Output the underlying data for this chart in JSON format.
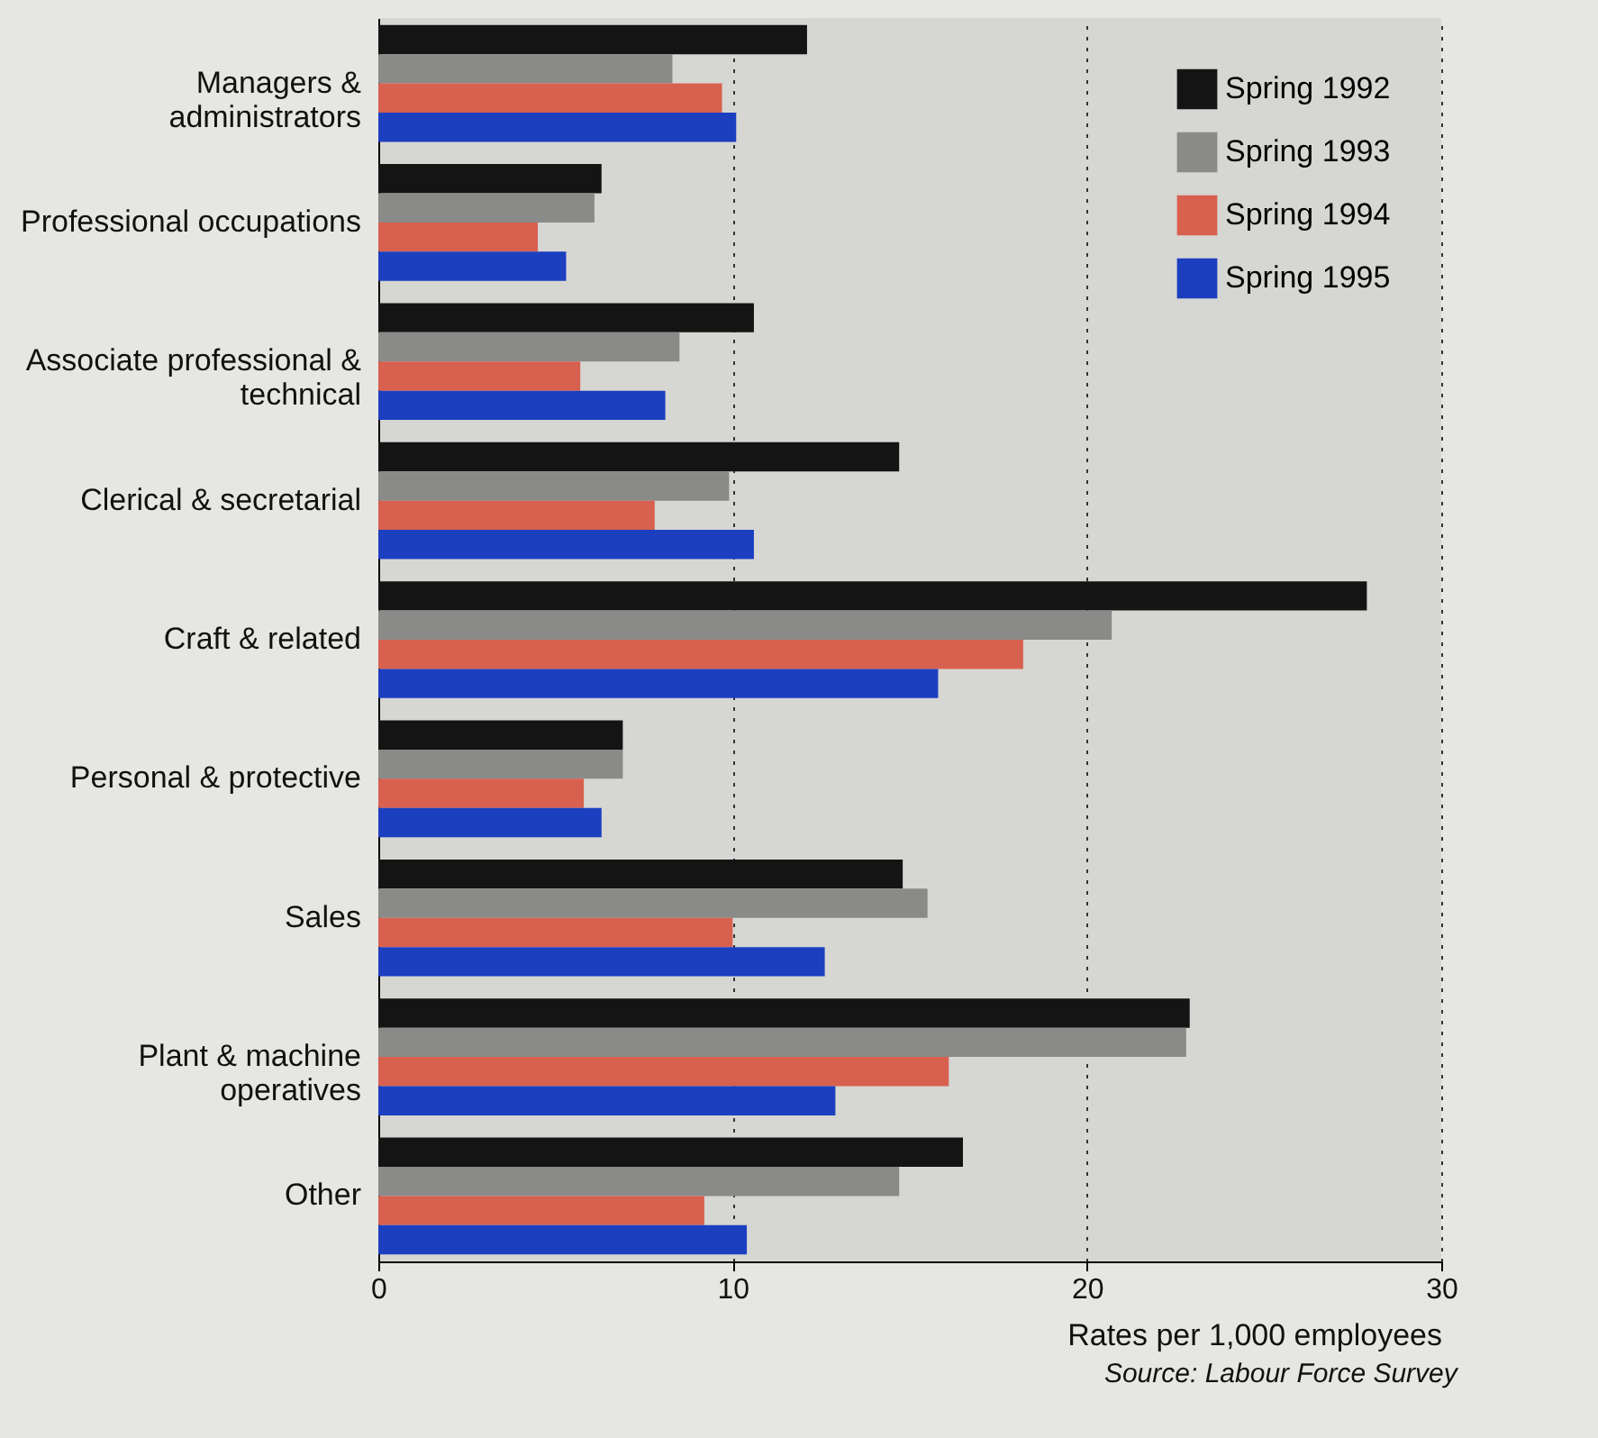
{
  "chart_data": {
    "type": "bar",
    "orientation": "horizontal",
    "categories": [
      "Managers & administrators",
      "Professional occupations",
      "Associate professional & technical",
      "Clerical & secretarial",
      "Craft & related",
      "Personal & protective",
      "Sales",
      "Plant & machine operatives",
      "Other"
    ],
    "series": [
      {
        "name": "Spring 1992",
        "color": "#141414",
        "values": [
          12.1,
          6.3,
          10.6,
          14.7,
          27.9,
          6.9,
          14.8,
          22.9,
          16.5
        ]
      },
      {
        "name": "Spring 1993",
        "color": "#8a8a88",
        "values": [
          8.3,
          6.1,
          8.5,
          9.9,
          20.7,
          6.9,
          15.5,
          22.8,
          14.7
        ]
      },
      {
        "name": "Spring 1994",
        "color": "#d8604f",
        "values": [
          9.7,
          4.5,
          5.7,
          7.8,
          18.2,
          5.8,
          10.0,
          16.1,
          9.2
        ]
      },
      {
        "name": "Spring 1995",
        "color": "#1c3fc0",
        "values": [
          10.1,
          5.3,
          8.1,
          10.6,
          15.8,
          6.3,
          12.6,
          12.9,
          10.4
        ]
      }
    ],
    "xlim": [
      0,
      30
    ],
    "xticks": [
      0,
      10,
      20,
      30
    ],
    "grid": "x",
    "legend": "top right",
    "xlabel": "Rates per 1,000 employees",
    "annotations": [
      "Source: Labour Force Survey"
    ]
  }
}
